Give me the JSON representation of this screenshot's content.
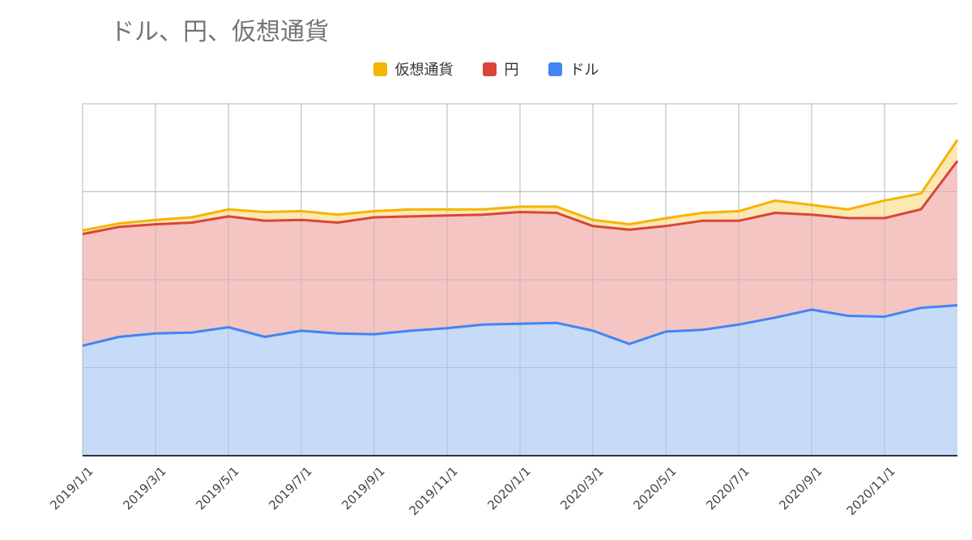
{
  "chart_data": {
    "type": "area",
    "stacked": true,
    "title": "ドル、円、仮想通貨",
    "legend_position": "top",
    "grid": true,
    "x": [
      "2019/1/1",
      "2019/2/1",
      "2019/3/1",
      "2019/4/1",
      "2019/5/1",
      "2019/6/1",
      "2019/7/1",
      "2019/8/1",
      "2019/9/1",
      "2019/10/1",
      "2019/11/1",
      "2019/12/1",
      "2020/1/1",
      "2020/2/1",
      "2020/3/1",
      "2020/4/1",
      "2020/5/1",
      "2020/6/1",
      "2020/7/1",
      "2020/8/1",
      "2020/9/1",
      "2020/10/1",
      "2020/11/1",
      "2020/12/1",
      "2021/1/1"
    ],
    "tick_labels": [
      "2019/1/1",
      "2019/3/1",
      "2019/5/1",
      "2019/7/1",
      "2019/9/1",
      "2019/11/1",
      "2020/1/1",
      "2020/3/1",
      "2020/5/1",
      "2020/7/1",
      "2020/9/1",
      "2020/11/1"
    ],
    "ylim": [
      0,
      4
    ],
    "series": [
      {
        "name": "ドル",
        "color": "#4285f4",
        "fill": "#c6dbf8",
        "values": [
          1.25,
          1.35,
          1.39,
          1.4,
          1.46,
          1.35,
          1.42,
          1.39,
          1.38,
          1.42,
          1.45,
          1.49,
          1.5,
          1.51,
          1.42,
          1.27,
          1.41,
          1.43,
          1.49,
          1.57,
          1.66,
          1.59,
          1.58,
          1.68,
          1.71
        ]
      },
      {
        "name": "円",
        "color": "#db4437",
        "fill": "#f4c5c3",
        "values": [
          1.27,
          1.25,
          1.24,
          1.25,
          1.26,
          1.32,
          1.26,
          1.26,
          1.33,
          1.3,
          1.28,
          1.25,
          1.27,
          1.25,
          1.19,
          1.3,
          1.2,
          1.24,
          1.18,
          1.19,
          1.08,
          1.11,
          1.12,
          1.12,
          1.64
        ]
      },
      {
        "name": "仮想通貨",
        "color": "#f4b400",
        "fill": "#fce8b2",
        "values": [
          0.04,
          0.04,
          0.05,
          0.06,
          0.08,
          0.1,
          0.1,
          0.09,
          0.07,
          0.08,
          0.07,
          0.06,
          0.06,
          0.07,
          0.07,
          0.06,
          0.09,
          0.09,
          0.11,
          0.14,
          0.11,
          0.1,
          0.2,
          0.18,
          0.24
        ]
      }
    ]
  }
}
